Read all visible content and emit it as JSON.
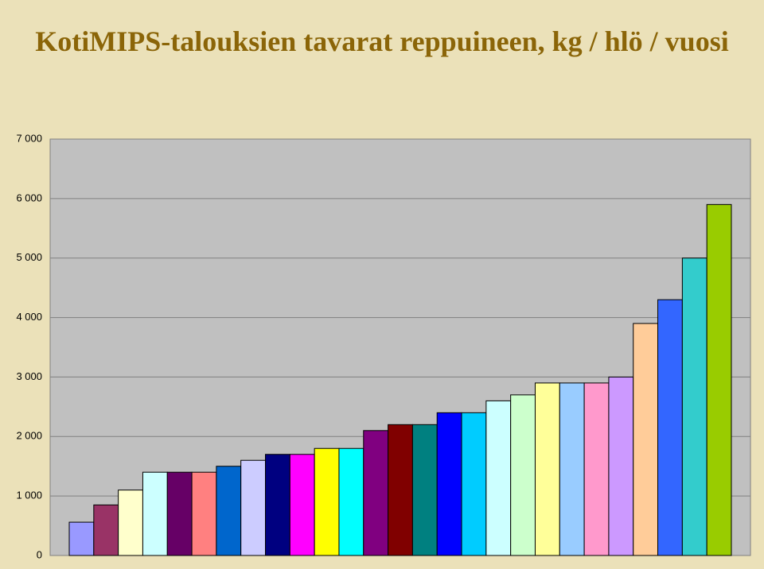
{
  "chart_data": {
    "type": "bar",
    "title": "KotiMIPS-talouksien tavarat reppuineen, kg / hlö / vuosi",
    "values": [
      560,
      850,
      1100,
      1400,
      1400,
      1400,
      1500,
      1600,
      1700,
      1700,
      1800,
      1800,
      2100,
      2200,
      2200,
      2400,
      2400,
      2600,
      2700,
      2900,
      2900,
      2900,
      3000,
      3900,
      4300,
      5000,
      5900
    ],
    "colors": [
      "#9999ff",
      "#993366",
      "#ffffcc",
      "#ccffff",
      "#660066",
      "#ff8080",
      "#0066cc",
      "#ccccff",
      "#000080",
      "#ff00ff",
      "#ffff00",
      "#00ffff",
      "#800080",
      "#800000",
      "#008080",
      "#0000ff",
      "#00ccff",
      "#ccffff",
      "#ccffcc",
      "#ffff99",
      "#99ccff",
      "#ff99cc",
      "#cc99ff",
      "#ffcc99",
      "#3366ff",
      "#33cccc",
      "#99cc00"
    ],
    "ylim": [
      0,
      7000
    ],
    "yticks": [
      0,
      {
        "value": 1000,
        "label": "1 000"
      },
      {
        "value": 2000,
        "label": "2 000"
      },
      {
        "value": 3000,
        "label": "3 000"
      },
      {
        "value": 4000,
        "label": "4 000"
      },
      {
        "value": 5000,
        "label": "5 000"
      },
      {
        "value": 6000,
        "label": "6 000"
      },
      {
        "value": 7000,
        "label": "7 000"
      }
    ],
    "grid": true
  }
}
